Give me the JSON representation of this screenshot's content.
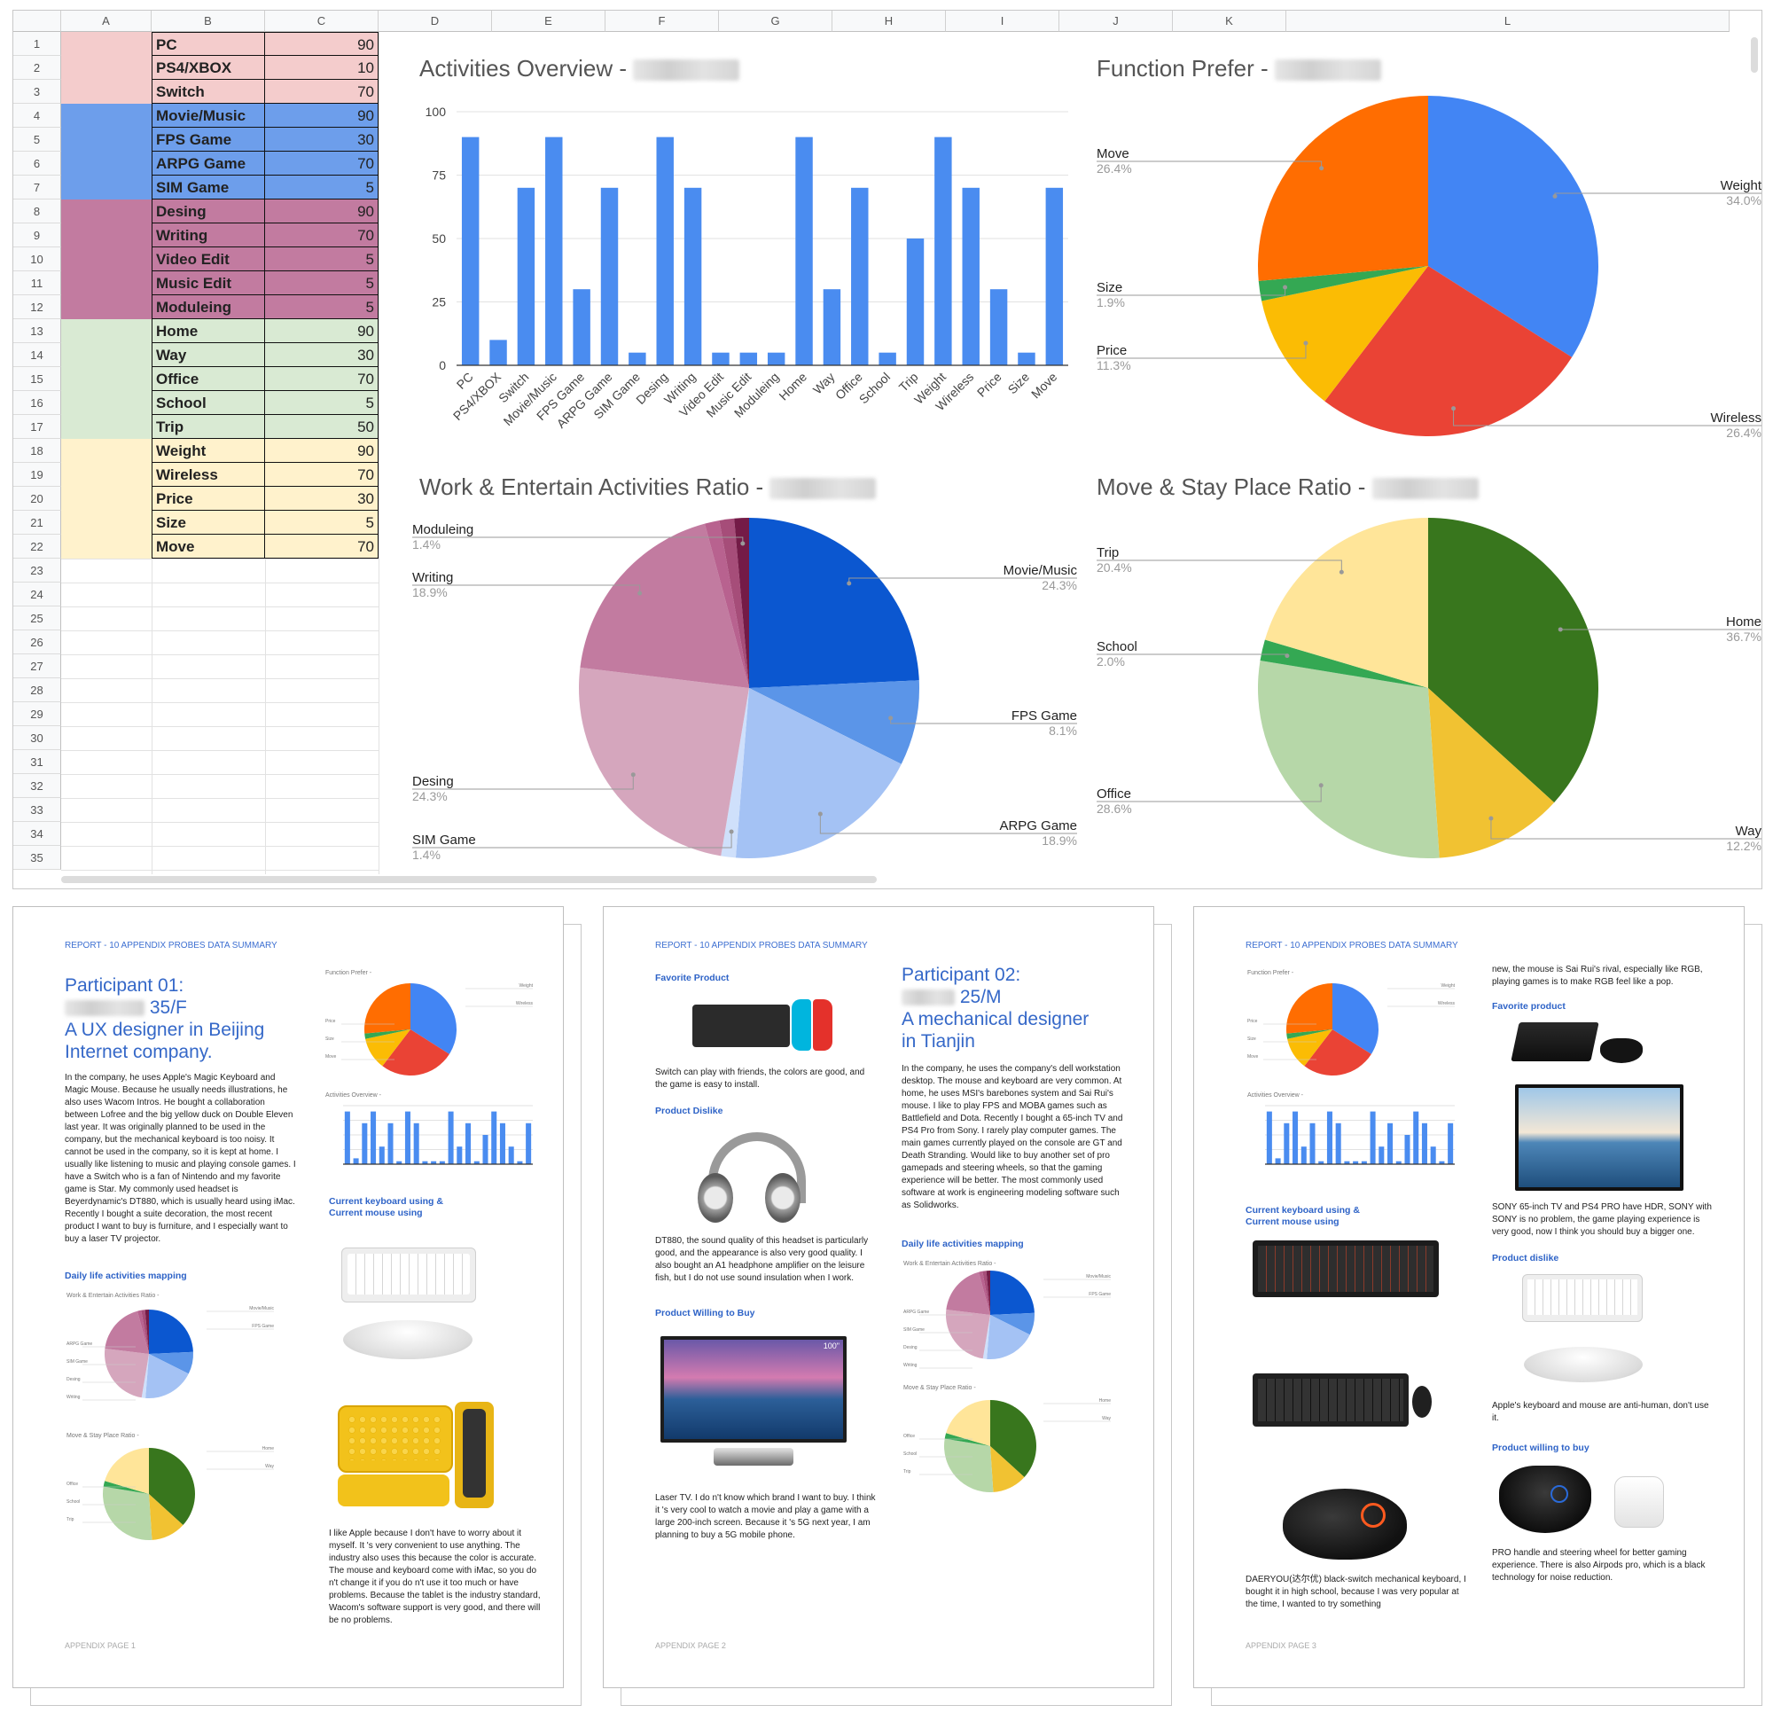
{
  "sheet": {
    "columns": [
      "A",
      "B",
      "C",
      "D",
      "E",
      "F",
      "G",
      "H",
      "I",
      "J",
      "K",
      "L"
    ],
    "rows": [
      "1",
      "2",
      "3",
      "4",
      "5",
      "6",
      "7",
      "8",
      "9",
      "10",
      "11",
      "12",
      "13",
      "14",
      "15",
      "16",
      "17",
      "18",
      "19",
      "20",
      "21",
      "22",
      "23",
      "24",
      "25",
      "26",
      "27",
      "28",
      "29",
      "30",
      "31",
      "32",
      "33",
      "34",
      "35"
    ],
    "data": [
      {
        "label": "PC",
        "value": "90",
        "color": "#f4cccc"
      },
      {
        "label": "PS4/XBOX",
        "value": "10",
        "color": "#f4cccc"
      },
      {
        "label": "Switch",
        "value": "70",
        "color": "#f4cccc"
      },
      {
        "label": "Movie/Music",
        "value": "90",
        "color": "#6d9eeb"
      },
      {
        "label": "FPS Game",
        "value": "30",
        "color": "#6d9eeb"
      },
      {
        "label": "ARPG Game",
        "value": "70",
        "color": "#6d9eeb"
      },
      {
        "label": "SIM Game",
        "value": "5",
        "color": "#6d9eeb"
      },
      {
        "label": "Desing",
        "value": "90",
        "color": "#c27ba0"
      },
      {
        "label": "Writing",
        "value": "70",
        "color": "#c27ba0"
      },
      {
        "label": "Video Edit",
        "value": "5",
        "color": "#c27ba0"
      },
      {
        "label": "Music Edit",
        "value": "5",
        "color": "#c27ba0"
      },
      {
        "label": "Moduleing",
        "value": "5",
        "color": "#c27ba0"
      },
      {
        "label": "Home",
        "value": "90",
        "color": "#d9ead3"
      },
      {
        "label": "Way",
        "value": "30",
        "color": "#d9ead3"
      },
      {
        "label": "Office",
        "value": "70",
        "color": "#d9ead3"
      },
      {
        "label": "School",
        "value": "5",
        "color": "#d9ead3"
      },
      {
        "label": "Trip",
        "value": "50",
        "color": "#d9ead3"
      },
      {
        "label": "Weight",
        "value": "90",
        "color": "#fff2cc"
      },
      {
        "label": "Wireless",
        "value": "70",
        "color": "#fff2cc"
      },
      {
        "label": "Price",
        "value": "30",
        "color": "#fff2cc"
      },
      {
        "label": "Size",
        "value": "5",
        "color": "#fff2cc"
      },
      {
        "label": "Move",
        "value": "70",
        "color": "#fff2cc"
      }
    ]
  },
  "chart_data": [
    {
      "type": "bar",
      "title": "Activities Overview -",
      "categories": [
        "PC",
        "PS4/XBOX",
        "Switch",
        "Movie/Music",
        "FPS Game",
        "ARPG Game",
        "SIM Game",
        "Desing",
        "Writing",
        "Video Edit",
        "Music Edit",
        "Moduleing",
        "Home",
        "Way",
        "Office",
        "School",
        "Trip",
        "Weight",
        "Wireless",
        "Price",
        "Size",
        "Move"
      ],
      "values": [
        90,
        10,
        70,
        90,
        30,
        70,
        5,
        90,
        70,
        5,
        5,
        5,
        90,
        30,
        70,
        5,
        50,
        90,
        70,
        30,
        5,
        70
      ],
      "yticks": [
        "0",
        "25",
        "50",
        "75",
        "100"
      ],
      "ylim": [
        0,
        100
      ],
      "color": "#4a8cf0"
    },
    {
      "type": "pie",
      "title": "Function Prefer -",
      "slices": [
        {
          "label": "Weight",
          "value": 34.0,
          "pct": "34.0%",
          "color": "#4285f4"
        },
        {
          "label": "Wireless",
          "value": 26.4,
          "pct": "26.4%",
          "color": "#ea4335"
        },
        {
          "label": "Price",
          "value": 11.3,
          "pct": "11.3%",
          "color": "#fbbc04"
        },
        {
          "label": "Size",
          "value": 1.9,
          "pct": "1.9%",
          "color": "#34a853"
        },
        {
          "label": "Move",
          "value": 26.4,
          "pct": "26.4%",
          "color": "#ff6d01"
        }
      ]
    },
    {
      "type": "pie",
      "title": "Work & Entertain Activities Ratio -",
      "slices": [
        {
          "label": "Movie/Music",
          "value": 24.3,
          "pct": "24.3%",
          "color": "#0b57d0"
        },
        {
          "label": "FPS Game",
          "value": 8.1,
          "pct": "8.1%",
          "color": "#5b95e8"
        },
        {
          "label": "ARPG Game",
          "value": 18.9,
          "pct": "18.9%",
          "color": "#a4c2f4"
        },
        {
          "label": "SIM Game",
          "value": 1.4,
          "pct": "1.4%",
          "color": "#cfe0fb"
        },
        {
          "label": "Desing",
          "value": 24.3,
          "pct": "24.3%",
          "color": "#d5a6bd"
        },
        {
          "label": "Writing",
          "value": 18.9,
          "pct": "18.9%",
          "color": "#c27ba0"
        },
        {
          "label": "Video Edit",
          "value": 1.4,
          "pct": "",
          "color": "#b8628f"
        },
        {
          "label": "Music Edit",
          "value": 1.4,
          "pct": "",
          "color": "#a64d79"
        },
        {
          "label": "Moduleing",
          "value": 1.4,
          "pct": "1.4%",
          "color": "#741b47"
        }
      ]
    },
    {
      "type": "pie",
      "title": "Move & Stay Place Ratio -",
      "slices": [
        {
          "label": "Home",
          "value": 36.7,
          "pct": "36.7%",
          "color": "#38761d"
        },
        {
          "label": "Way",
          "value": 12.2,
          "pct": "12.2%",
          "color": "#f1c232"
        },
        {
          "label": "Office",
          "value": 28.6,
          "pct": "28.6%",
          "color": "#b6d7a8"
        },
        {
          "label": "School",
          "value": 2.0,
          "pct": "2.0%",
          "color": "#34a853"
        },
        {
          "label": "Trip",
          "value": 20.4,
          "pct": "20.4%",
          "color": "#ffe599"
        }
      ]
    }
  ],
  "pages": {
    "header": "REPORT - 10 APPENDIX PROBES DATA SUMMARY",
    "p1": {
      "title1": "Participant 01:",
      "title2": "35/F",
      "title3": "A UX designer in Beijing",
      "title4": "Internet company.",
      "body": "In the company, he uses Apple's Magic Keyboard and Magic Mouse. Because he usually needs illustrations, he also uses Wacom Intros. He bought a collaboration between Lofree and the big yellow duck on Double Eleven last year. It was originally planned to be used in the company, but the mechanical keyboard is too noisy. It cannot be used in the company, so it is kept at home. I usually like listening to music and playing console games. I have a Switch who is a fan of Nintendo and my favorite game is Star. My commonly used headset is Beyerdynamic's DT880, which is usually heard using iMac. Recently I bought a suite decoration, the most recent product I want to buy is furniture, and I especially want to buy a laser TV projector.",
      "sec_daily": "Daily life activities mapping",
      "sec_kb1": "Current keyboard using &",
      "sec_kb2": "Current mouse using",
      "quote": "I like Apple because I don't have to worry about it myself. It 's very convenient to use anything. The industry also uses this because the color is accurate. The mouse and keyboard come with iMac, so you do n't change it if you do n't use it too much or have problems. Because the tablet is the industry standard, Wacom's software support is very good, and there will be no problems.",
      "footer": "APPENDIX PAGE 1"
    },
    "p2": {
      "sec_fav": "Favorite Product",
      "fav_text": "Switch can play with friends, the colors are good, and the game is easy to install.",
      "sec_dislike": "Product Dislike",
      "dislike_text": "DT880, the sound quality of this headset is particularly good, and the appearance is also very good quality. I also bought an A1 headphone amplifier on the leisure fish, but I do not use sound insulation when I work.",
      "sec_buy": "Product Willing to Buy",
      "buy_text": "Laser TV. I do n't know which brand I want to buy. I think it 's very cool to watch a movie and play a game with a large 200-inch screen. Because it 's 5G next year, I am planning to buy a 5G mobile phone.",
      "title1": "Participant 02:",
      "title2": "25/M",
      "title3": "A mechanical designer",
      "title4": "in Tianjin",
      "body": "In the company, he uses the company's dell workstation desktop. The mouse and keyboard are very common. At home, he uses MSI's barebones system and Sai Rui's mouse. I like to play FPS and MOBA games such as Battlefield and Dota. Recently I bought a 65-inch TV and PS4 Pro from Sony. I rarely play computer games. The main games currently played on the console are GT and Death Stranding. Would like to buy another set of pro gamepads and steering wheels, so that the gaming experience will be better. The most commonly used software at work is engineering modeling software such as Solidworks.",
      "sec_daily": "Daily life activities mapping",
      "tv_badge": "100\"",
      "footer": "APPENDIX PAGE 2"
    },
    "p3": {
      "sec_kb1": "Current keyboard using &",
      "sec_kb2": "Current mouse using",
      "daeryou": "DAERYOU(达尔优) black-switch mechanical keyboard, I bought it in high school, because I was very popular at the time, I wanted to try something",
      "right_top": "new, the mouse is Sai Rui's rival, especially like RGB, playing games is to make RGB feel like a pop.",
      "sec_fav": "Favorite product",
      "sony_text": "SONY 65-inch TV and PS4 PRO have HDR, SONY with SONY is no problem, the game playing experience is very good, now I think you should buy a bigger one.",
      "sec_dislike": "Product dislike",
      "apple_text": "Apple's keyboard and mouse are anti-human, don't use it.",
      "sec_buy": "Product willing to buy",
      "pro_text": "PRO handle and steering wheel for better gaming experience. There is also Airpods pro, which is a black technology for noise reduction.",
      "footer": "APPENDIX PAGE 3"
    },
    "mini_titles": {
      "function": "Function Prefer -",
      "activities": "Activities Overview -",
      "work": "Work & Entertain Activities Ratio -",
      "move": "Move & Stay Place Ratio -"
    }
  }
}
